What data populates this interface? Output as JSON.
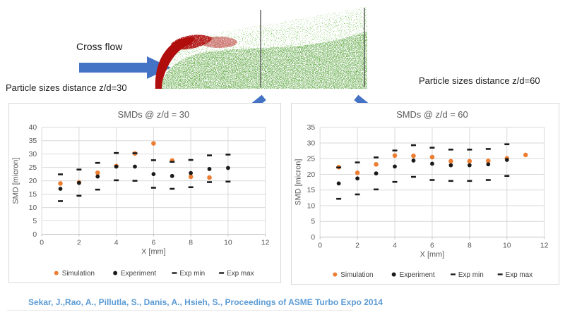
{
  "header": {
    "cross_flow_label": "Cross flow",
    "left_caption": "Particle sizes distance z/d=30",
    "right_caption": "Particle sizes distance z/d=60"
  },
  "footer": {
    "citation": "Sekar, J.,Rao, A., Pillutla, S., Danis, A., Hsieh, S., Proceedings of ASME Turbo Expo 2014"
  },
  "colors": {
    "simulation_orange": "#ED7D31",
    "experiment_black": "#1a1a1a",
    "arrow_blue": "#4472C4",
    "citation_blue": "#5B9BD5",
    "gridline": "#D9D9D9",
    "axis_text": "#595959",
    "spray_green": "#3F9623",
    "spray_green_light": "#58B32E",
    "spray_red": "#B00D0D"
  },
  "chart_data": [
    {
      "type": "scatter",
      "title": "SMDs @ z/d = 30",
      "xlabel": "X [mm]",
      "ylabel": "SMD [micron]",
      "xlim": [
        0,
        12
      ],
      "ylim": [
        0,
        40
      ],
      "xticks": [
        0,
        2,
        4,
        6,
        8,
        10,
        12
      ],
      "yticks": [
        0,
        5,
        10,
        15,
        20,
        25,
        30,
        35,
        40
      ],
      "grid": true,
      "legend_position": "bottom",
      "series": [
        {
          "name": "Simulation",
          "marker": "circle",
          "color": "#ED7D31",
          "x": [
            1,
            2,
            3,
            4,
            5,
            6,
            7,
            8,
            9
          ],
          "y": [
            19.0,
            19.4,
            23.0,
            25.5,
            30.2,
            34.0,
            27.6,
            21.5,
            21.2
          ]
        },
        {
          "name": "Experiment",
          "marker": "circle",
          "color": "#1a1a1a",
          "x": [
            1,
            2,
            3,
            4,
            5,
            6,
            7,
            8,
            9,
            10
          ],
          "y": [
            17.0,
            19.2,
            21.6,
            25.3,
            25.3,
            22.5,
            21.8,
            22.9,
            24.4,
            24.8
          ]
        },
        {
          "name": "Exp min",
          "marker": "dash",
          "color": "#1a1a1a",
          "x": [
            1,
            2,
            3,
            4,
            5,
            6,
            7,
            8,
            9,
            10
          ],
          "y": [
            12.4,
            14.4,
            16.7,
            20.2,
            20.0,
            17.4,
            17.0,
            17.6,
            19.5,
            19.7
          ]
        },
        {
          "name": "Exp max",
          "marker": "dash",
          "color": "#1a1a1a",
          "x": [
            1,
            2,
            3,
            4,
            5,
            6,
            7,
            8,
            9,
            10
          ],
          "y": [
            22.4,
            24.2,
            26.7,
            30.4,
            30.3,
            27.7,
            27.1,
            27.8,
            29.5,
            29.8
          ]
        }
      ]
    },
    {
      "type": "scatter",
      "title": "SMDs @ z/d = 60",
      "xlabel": "X [mm]",
      "ylabel": "SMD [micron]",
      "xlim": [
        0,
        12
      ],
      "ylim": [
        0,
        35
      ],
      "xticks": [
        0,
        2,
        4,
        6,
        8,
        10,
        12
      ],
      "yticks": [
        0,
        5,
        10,
        15,
        20,
        25,
        30,
        35
      ],
      "grid": true,
      "legend_position": "bottom",
      "series": [
        {
          "name": "Simulation",
          "marker": "circle",
          "color": "#ED7D31",
          "x": [
            1,
            2,
            3,
            4,
            5,
            6,
            7,
            8,
            9,
            10,
            11
          ],
          "y": [
            22.3,
            20.5,
            23.2,
            26.0,
            25.9,
            25.5,
            24.2,
            24.2,
            24.3,
            25.1,
            26.2
          ]
        },
        {
          "name": "Experiment",
          "marker": "circle",
          "color": "#1a1a1a",
          "x": [
            1,
            2,
            3,
            4,
            5,
            6,
            7,
            8,
            9,
            10
          ],
          "y": [
            17.1,
            18.7,
            20.3,
            22.5,
            24.4,
            23.4,
            22.9,
            22.9,
            23.2,
            24.6
          ]
        },
        {
          "name": "Exp min",
          "marker": "dash",
          "color": "#1a1a1a",
          "x": [
            1,
            2,
            3,
            4,
            5,
            6,
            7,
            8,
            9,
            10
          ],
          "y": [
            12.2,
            13.6,
            15.2,
            17.6,
            19.2,
            18.2,
            17.9,
            17.9,
            18.2,
            19.5
          ]
        },
        {
          "name": "Exp max",
          "marker": "dash",
          "color": "#1a1a1a",
          "x": [
            1,
            2,
            3,
            4,
            5,
            6,
            7,
            8,
            9,
            10
          ],
          "y": [
            22.2,
            23.8,
            25.4,
            27.6,
            29.3,
            28.5,
            27.9,
            27.9,
            28.1,
            29.6
          ]
        }
      ]
    }
  ]
}
